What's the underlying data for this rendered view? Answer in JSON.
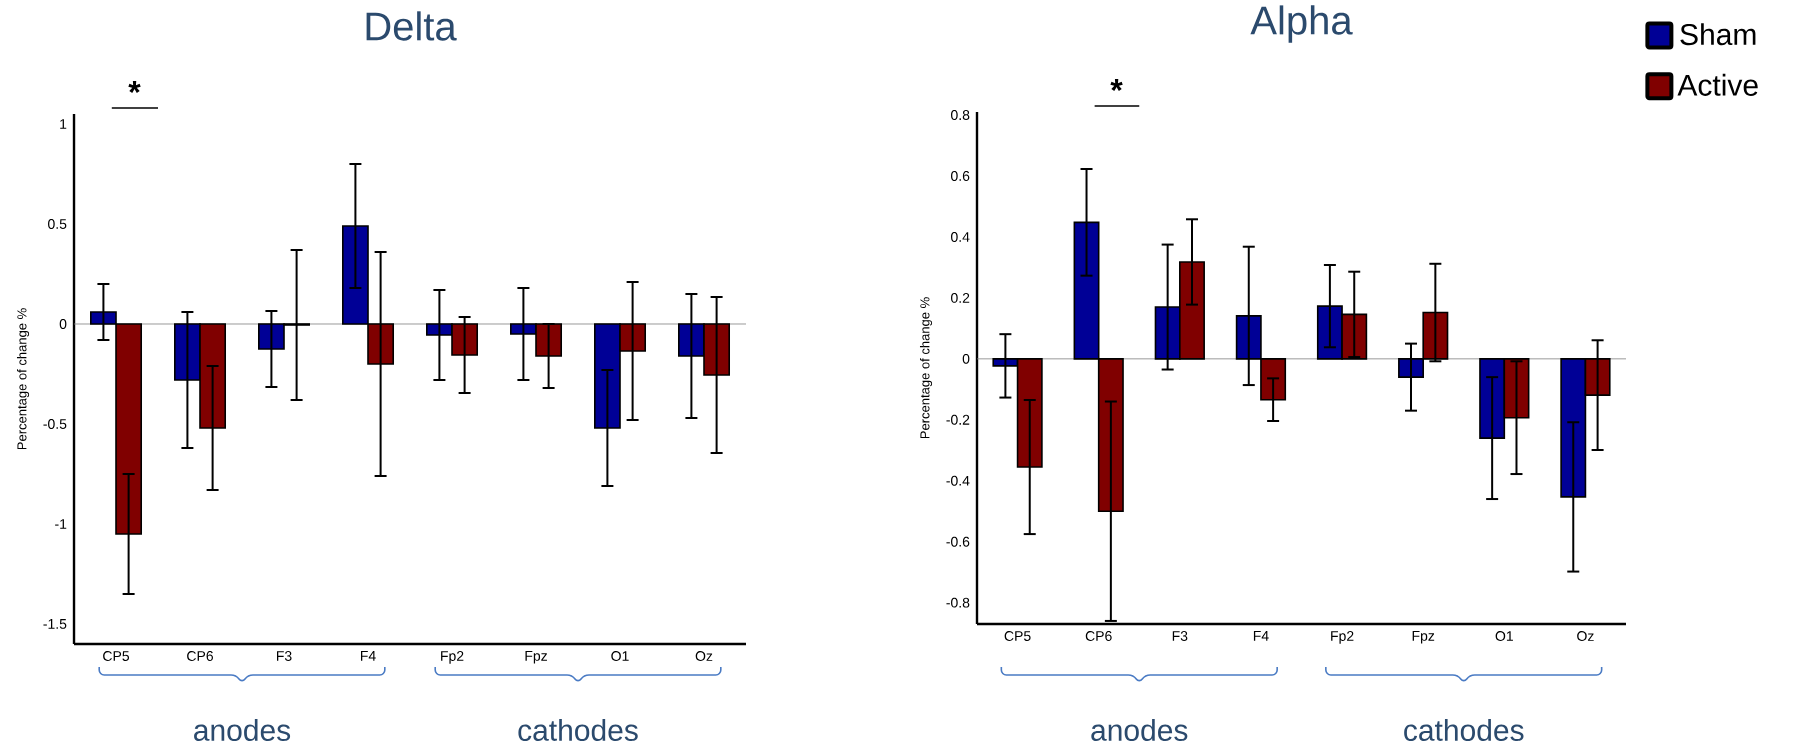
{
  "chart_data": [
    {
      "type": "bar",
      "title": "Delta",
      "ylabel": "Percentage of change %",
      "categories": [
        "CP5",
        "CP6",
        "F3",
        "F4",
        "Fp2",
        "Fpz",
        "O1",
        "Oz"
      ],
      "series": [
        {
          "color": "#000096",
          "values": [
            0.06,
            -0.28,
            -0.125,
            0.49,
            -0.055,
            -0.05,
            -0.52,
            -0.16
          ],
          "errors": [
            0.14,
            0.34,
            0.19,
            0.31,
            0.225,
            0.23,
            0.29,
            0.31
          ]
        },
        {
          "color": "#800000",
          "values": [
            -1.05,
            -0.52,
            -0.005,
            -0.2,
            -0.155,
            -0.16,
            -0.135,
            -0.255
          ],
          "errors": [
            0.3,
            0.31,
            0.375,
            0.56,
            0.19,
            0.16,
            0.345,
            0.39
          ]
        }
      ],
      "ylim": [
        -1.6,
        1.05
      ],
      "yticks": [
        -1.5,
        -1,
        -0.5,
        0,
        0.5,
        1
      ],
      "ref_lines": [
        {
          "axis": "y",
          "value": 0,
          "color": "#808080"
        }
      ],
      "annotations": [
        "*",
        "anodes",
        "cathodes"
      ]
    },
    {
      "type": "bar",
      "title": "Alpha",
      "ylabel": "Percentage of change %",
      "categories": [
        "CP5",
        "CP6",
        "F3",
        "F4",
        "Fp2",
        "Fpz",
        "O1",
        "Oz"
      ],
      "series": [
        {
          "name": "Sham",
          "color": "#000096",
          "values": [
            -0.023,
            0.448,
            0.17,
            0.141,
            0.173,
            -0.06,
            -0.26,
            -0.453
          ],
          "errors": [
            0.104,
            0.175,
            0.205,
            0.227,
            0.135,
            0.11,
            0.2,
            0.245
          ]
        },
        {
          "name": "Active",
          "color": "#800000",
          "values": [
            -0.355,
            -0.5,
            0.318,
            -0.134,
            0.146,
            0.152,
            -0.193,
            -0.119
          ],
          "errors": [
            0.22,
            0.36,
            0.14,
            0.07,
            0.14,
            0.16,
            0.185,
            0.18
          ]
        }
      ],
      "ylim": [
        -0.87,
        0.81
      ],
      "yticks": [
        -0.8,
        -0.6,
        -0.4,
        -0.2,
        0,
        0.2,
        0.4,
        0.6,
        0.8
      ],
      "ref_lines": [
        {
          "axis": "y",
          "value": 0,
          "color": "#808080"
        }
      ],
      "legend": "top right",
      "annotations": [
        "*",
        "anodes",
        "cathodes"
      ]
    }
  ]
}
